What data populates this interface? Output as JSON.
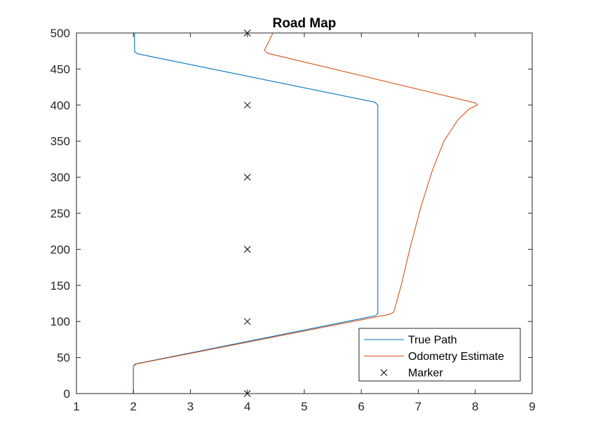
{
  "chart_data": {
    "type": "line",
    "title": "Road Map",
    "xlabel": "",
    "ylabel": "",
    "xlim": [
      1,
      9
    ],
    "ylim": [
      0,
      500
    ],
    "x_ticks": [
      1,
      2,
      3,
      4,
      5,
      6,
      7,
      8,
      9
    ],
    "y_ticks": [
      0,
      50,
      100,
      150,
      200,
      250,
      300,
      350,
      400,
      450,
      500
    ],
    "grid": false,
    "legend_position": "bottom-right",
    "series": [
      {
        "name": "True Path",
        "kind": "line",
        "color": "#0072BD",
        "points": [
          [
            2.0,
            0
          ],
          [
            2.0,
            38
          ],
          [
            2.03,
            41
          ],
          [
            6.25,
            108
          ],
          [
            6.29,
            111
          ],
          [
            6.29,
            400
          ],
          [
            6.24,
            404
          ],
          [
            2.08,
            471
          ],
          [
            2.02,
            474
          ],
          [
            2.02,
            500
          ]
        ]
      },
      {
        "name": "Odometry Estimate",
        "kind": "line",
        "color": "#D95319",
        "points": [
          [
            2.0,
            0
          ],
          [
            2.0,
            38
          ],
          [
            2.05,
            41
          ],
          [
            6.5,
            110
          ],
          [
            6.57,
            113
          ],
          [
            6.7,
            150
          ],
          [
            6.85,
            200
          ],
          [
            7.05,
            260
          ],
          [
            7.25,
            310
          ],
          [
            7.45,
            350
          ],
          [
            7.7,
            380
          ],
          [
            7.9,
            395
          ],
          [
            8.04,
            400
          ],
          [
            8.0,
            403
          ],
          [
            4.35,
            472
          ],
          [
            4.3,
            476
          ],
          [
            4.45,
            500
          ]
        ]
      },
      {
        "name": "Marker",
        "kind": "marker",
        "marker": "x",
        "color": "#000000",
        "points": [
          [
            4,
            0
          ],
          [
            4,
            100
          ],
          [
            4,
            200
          ],
          [
            4,
            300
          ],
          [
            4,
            400
          ],
          [
            4,
            500
          ]
        ]
      }
    ]
  }
}
